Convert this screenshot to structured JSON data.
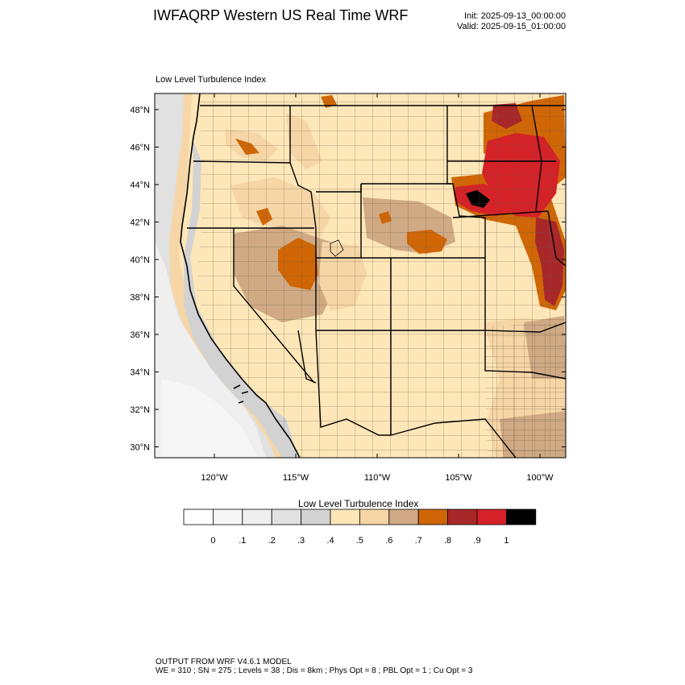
{
  "header": {
    "title": "IWFAQRP Western US Real Time WRF",
    "init": "Init: 2025-09-13_00:00:00",
    "valid": "Valid: 2025-09-15_01:00:00"
  },
  "map": {
    "subtitle": "Low Level Turbulence Index",
    "lat_labels": [
      "48°N",
      "46°N",
      "44°N",
      "42°N",
      "40°N",
      "38°N",
      "36°N",
      "34°N",
      "32°N",
      "30°N"
    ],
    "lon_labels": [
      "120°W",
      "115°W",
      "110°W",
      "105°W",
      "100°W"
    ]
  },
  "colorbar": {
    "title": "Low Level Turbulence Index",
    "colors": [
      "#ffffff",
      "#f6f6f6",
      "#efefef",
      "#e1e1e1",
      "#d2d2d2",
      "#fde6b8",
      "#f6d6a6",
      "#cfaa84",
      "#d06606",
      "#a8282a",
      "#d42228",
      "#000000"
    ],
    "tick_labels": [
      "0",
      ".1",
      ".2",
      ".3",
      ".4",
      ".5",
      ".6",
      ".7",
      ".8",
      ".9",
      "1"
    ]
  },
  "footer": {
    "line1": "OUTPUT FROM WRF V4.6.1 MODEL",
    "line2": "WE = 310 ; SN = 275 ; Levels = 38 ; Dis = 8km ; Phys Opt = 8 ; PBL Opt = 1 ; Cu Opt = 3"
  }
}
